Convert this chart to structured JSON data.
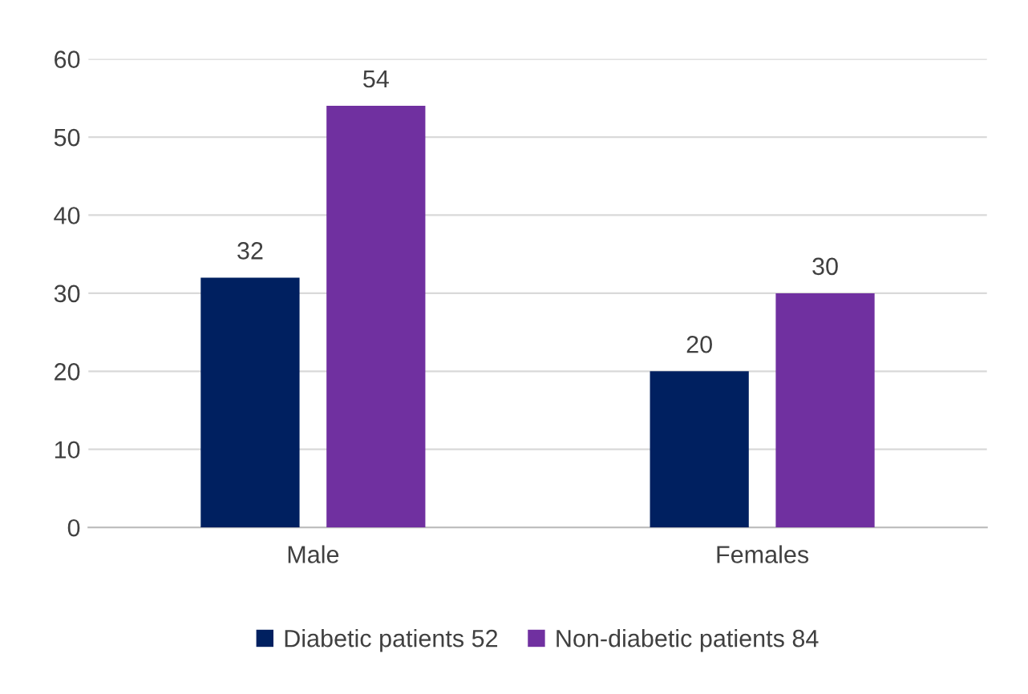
{
  "chart_data": {
    "type": "bar",
    "categories": [
      "Male",
      "Females"
    ],
    "series": [
      {
        "name": "Diabetic patients 52",
        "color": "#002060",
        "values": [
          32,
          20
        ]
      },
      {
        "name": "Non-diabetic patients 84",
        "color": "#7030a0",
        "values": [
          54,
          30
        ]
      }
    ],
    "ylim": [
      0,
      60
    ],
    "yticks": [
      0,
      10,
      20,
      30,
      40,
      50,
      60
    ],
    "grid": "y",
    "legend": "bottom",
    "data_labels": true
  }
}
